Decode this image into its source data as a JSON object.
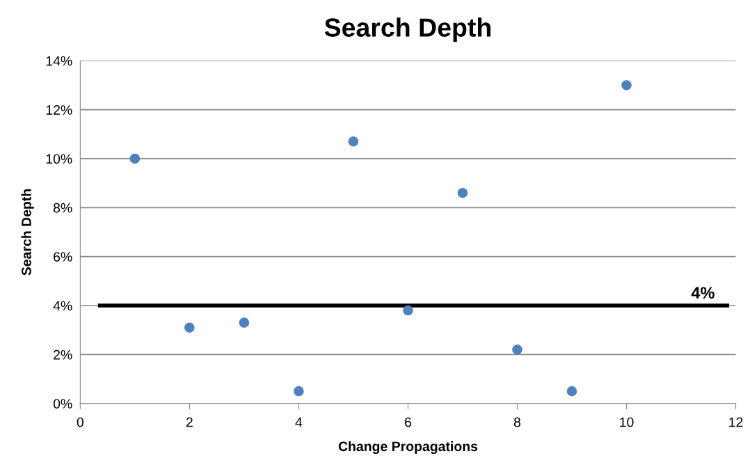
{
  "chart_data": {
    "type": "scatter",
    "title": "Search Depth",
    "xlabel": "Change Propagations",
    "ylabel": "Search Depth",
    "x": [
      1,
      2,
      3,
      4,
      5,
      6,
      7,
      8,
      9,
      10
    ],
    "series": [
      {
        "color": "#4f81bd",
        "values": [
          10.0,
          3.1,
          3.3,
          0.5,
          10.7,
          3.8,
          8.6,
          2.2,
          0.5,
          13.0
        ]
      }
    ],
    "xlim": [
      0,
      12
    ],
    "xticks": [
      0,
      2,
      4,
      6,
      8,
      10,
      12
    ],
    "ylim": [
      0,
      14
    ],
    "yticks": [
      {
        "value": 0,
        "label": "0%"
      },
      {
        "value": 2,
        "label": "2%"
      },
      {
        "value": 4,
        "label": "4%"
      },
      {
        "value": 6,
        "label": "6%"
      },
      {
        "value": 8,
        "label": "8%"
      },
      {
        "value": 10,
        "label": "10%"
      },
      {
        "value": 12,
        "label": "12%"
      },
      {
        "value": 14,
        "label": "14%"
      }
    ],
    "ref_lines": [
      {
        "axis": "y",
        "value": 4,
        "label": "4%",
        "color": "#000000"
      }
    ],
    "grid": "y",
    "marker": "circle",
    "legend": false
  }
}
